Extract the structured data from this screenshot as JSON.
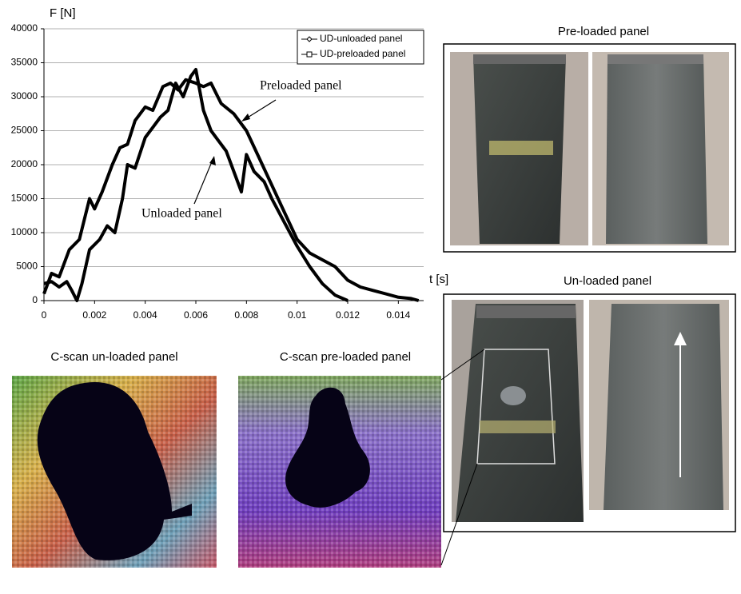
{
  "chart_data": {
    "type": "line",
    "y_label": "F [N]",
    "x_label": "t [s]",
    "xlim": [
      0,
      0.015
    ],
    "xticks": [
      0,
      0.002,
      0.004,
      0.006,
      0.008,
      0.01,
      0.012,
      0.014
    ],
    "ylim": [
      0,
      40000
    ],
    "yticks": [
      0,
      5000,
      10000,
      15000,
      20000,
      25000,
      30000,
      35000,
      40000
    ],
    "grid": true,
    "legend": "upper right",
    "annotations": [
      "Preloaded panel",
      "Unloaded panel"
    ],
    "series": [
      {
        "name": "UD-unloaded panel",
        "color": "#000000",
        "marker": "diamond",
        "x": [
          0,
          0.0003,
          0.0006,
          0.0009,
          0.0011,
          0.0013,
          0.0015,
          0.0018,
          0.0022,
          0.0025,
          0.0028,
          0.0031,
          0.0033,
          0.0036,
          0.004,
          0.0043,
          0.0046,
          0.0049,
          0.0052,
          0.0055,
          0.0058,
          0.006,
          0.0063,
          0.0066,
          0.0069,
          0.0072,
          0.0075,
          0.0078,
          0.008,
          0.0083,
          0.0087,
          0.009,
          0.0095,
          0.01,
          0.0105,
          0.011,
          0.0115,
          0.012
        ],
        "values": [
          2500,
          2800,
          2000,
          2800,
          1500,
          0,
          2500,
          7500,
          9000,
          11000,
          10000,
          15000,
          20000,
          19500,
          24000,
          25500,
          27000,
          28000,
          32000,
          30000,
          33000,
          34000,
          28000,
          25000,
          23500,
          22000,
          19000,
          16000,
          21500,
          19000,
          17500,
          15000,
          11500,
          8000,
          5000,
          2500,
          800,
          0
        ]
      },
      {
        "name": "UD-preloaded panel",
        "color": "#000000",
        "marker": "square",
        "x": [
          0,
          0.0003,
          0.0006,
          0.001,
          0.0014,
          0.0018,
          0.002,
          0.0023,
          0.0027,
          0.003,
          0.0033,
          0.0036,
          0.004,
          0.0043,
          0.0047,
          0.005,
          0.0053,
          0.0056,
          0.006,
          0.0063,
          0.0066,
          0.007,
          0.0075,
          0.008,
          0.0085,
          0.009,
          0.0095,
          0.01,
          0.0105,
          0.011,
          0.0115,
          0.012,
          0.0125,
          0.013,
          0.0135,
          0.014,
          0.0145,
          0.0148
        ],
        "values": [
          1000,
          4000,
          3500,
          7500,
          9000,
          15000,
          13500,
          16000,
          20000,
          22500,
          23000,
          26500,
          28500,
          28000,
          31500,
          32000,
          31000,
          32500,
          32000,
          31500,
          32000,
          29000,
          27500,
          25000,
          21000,
          17000,
          13000,
          9000,
          7000,
          6000,
          5000,
          3000,
          2000,
          1500,
          1000,
          500,
          300,
          0
        ]
      }
    ]
  },
  "panels": {
    "preloaded_title": "Pre-loaded panel",
    "unloaded_title": "Un-loaded panel",
    "cscan_unloaded_title": "C-scan un-loaded panel",
    "cscan_preloaded_title": "C-scan pre-loaded panel"
  }
}
